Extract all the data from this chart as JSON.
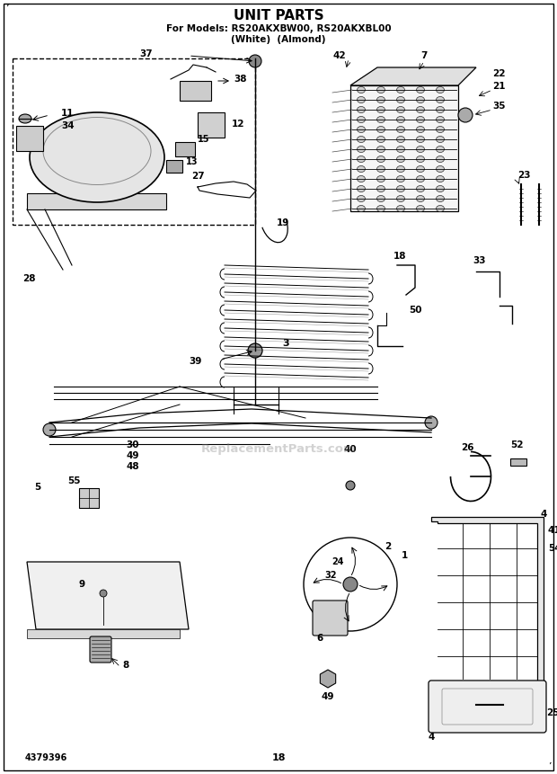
{
  "title": "UNIT PARTS",
  "subtitle1": "For Models: RS20AKXBW00, RS20AKXBL00",
  "subtitle2": "(White)  (Almond)",
  "page_number": "18",
  "doc_number": "4379396",
  "background_color": "#ffffff",
  "fig_width": 6.2,
  "fig_height": 8.61,
  "dpi": 100,
  "watermark": "ReplacementParts.com",
  "title_fontsize": 11,
  "subtitle_fontsize": 7.5
}
